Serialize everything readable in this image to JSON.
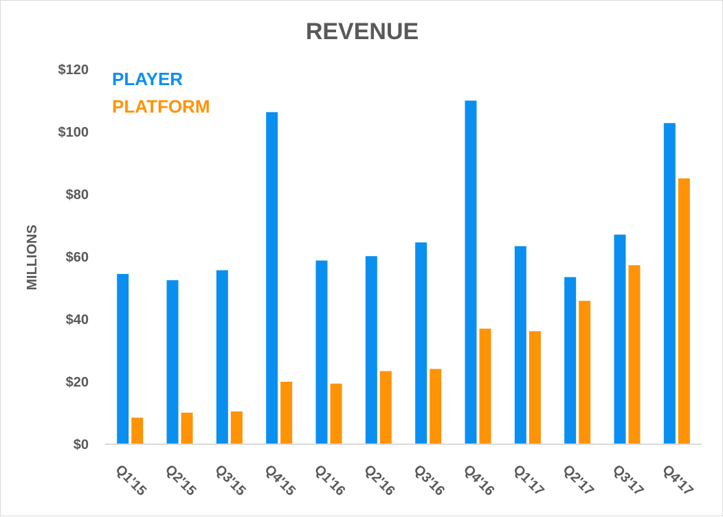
{
  "chart_data": {
    "type": "bar",
    "title": "REVENUE",
    "xlabel": "",
    "ylabel": "MILLIONS",
    "ylim": [
      0,
      120
    ],
    "yticks": [
      0,
      20,
      40,
      60,
      80,
      100,
      120
    ],
    "ytick_labels": [
      "$0",
      "$20",
      "$40",
      "$60",
      "$80",
      "$100",
      "$120"
    ],
    "grid": false,
    "legend_position": "top-left",
    "categories": [
      "Q1'15",
      "Q2'15",
      "Q3'15",
      "Q4'15",
      "Q1'16",
      "Q2'16",
      "Q3'16",
      "Q4'16",
      "Q1'17",
      "Q2'17",
      "Q3'17",
      "Q4'17"
    ],
    "series": [
      {
        "name": "PLAYER",
        "color": "#0a8ff0",
        "values": [
          54.5,
          52.5,
          55.7,
          106.3,
          58.8,
          60.2,
          64.6,
          110,
          63.4,
          53.5,
          67.1,
          102.8
        ]
      },
      {
        "name": "PLATFORM",
        "color": "#ff9306",
        "values": [
          8.5,
          10.1,
          10.5,
          20,
          19.4,
          23.4,
          24.1,
          37,
          36.2,
          45.9,
          57.3,
          85.1
        ]
      }
    ]
  }
}
